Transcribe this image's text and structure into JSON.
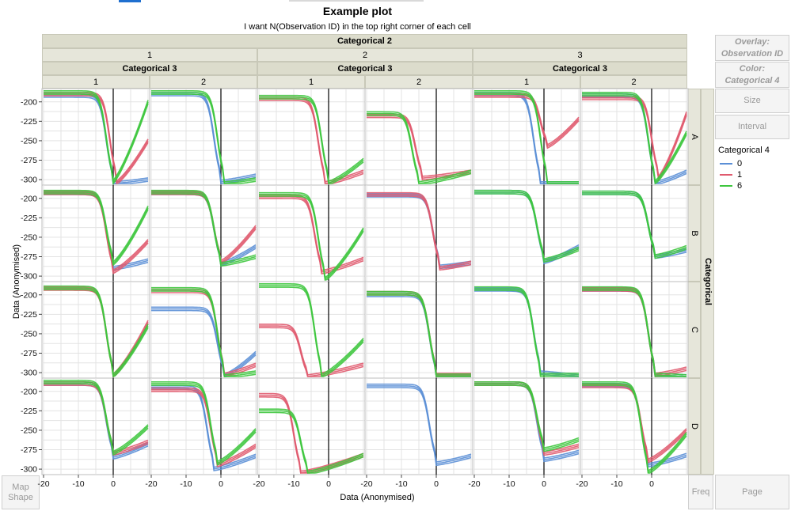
{
  "title": "Example plot",
  "subtitle": "I want N(Observation ID) in the top right corner of each cell",
  "side_panel": {
    "overlay_label": "Overlay:",
    "overlay_value": "Observation ID",
    "color_label": "Color:",
    "color_value": "Categorical 4",
    "size_button": "Size",
    "interval_button": "Interval",
    "freq_button": "Freq",
    "page_button": "Page",
    "map_shape_line1": "Map",
    "map_shape_line2": "Shape"
  },
  "legend": {
    "title": "Categorical 4",
    "items": [
      {
        "label": "0",
        "color": "#5b8fd6"
      },
      {
        "label": "1",
        "color": "#e05a6e"
      },
      {
        "label": "6",
        "color": "#3ec63e"
      }
    ]
  },
  "chart_data": {
    "type": "line",
    "xlabel": "Data (Anonymised)",
    "ylabel": "Data (Anonymised)",
    "xlim": [
      -20,
      10
    ],
    "ylim": [
      -305,
      -185
    ],
    "xticks": [
      -20,
      -10,
      0
    ],
    "yticks": [
      -200,
      -225,
      -250,
      -275,
      -300
    ],
    "grid": true,
    "reference_line_x": 0,
    "legend_placement": "right",
    "group_x_title": "Categorical 2",
    "group_x_sub_title": "Categorical 3",
    "group_y_title": "Categorical",
    "cat2_levels": [
      "1",
      "2",
      "3"
    ],
    "cat3_levels": [
      "1",
      "2"
    ],
    "row_levels": [
      "A",
      "B",
      "C",
      "D"
    ],
    "series_note": "Each panel overlays curves per Observation ID colored by Categorical 4",
    "panels": [
      {
        "row": "A",
        "cat2": "1",
        "cat3": "1",
        "curves": [
          {
            "color": "0",
            "start": -192,
            "end": -305,
            "mid": -2,
            "rebound": -300
          },
          {
            "color": "1",
            "start": -190,
            "end": -305,
            "mid": -1,
            "rebound": -250
          },
          {
            "color": "6",
            "start": -188,
            "end": -305,
            "mid": -2,
            "rebound": -200
          }
        ]
      },
      {
        "row": "A",
        "cat2": "1",
        "cat3": "2",
        "curves": [
          {
            "color": "0",
            "start": -190,
            "end": -303,
            "mid": -2,
            "rebound": -295
          },
          {
            "color": "6",
            "start": -188,
            "end": -305,
            "mid": -1,
            "rebound": -300
          }
        ]
      },
      {
        "row": "A",
        "cat2": "2",
        "cat3": "1",
        "curves": [
          {
            "color": "1",
            "start": -196,
            "end": -305,
            "mid": -3,
            "rebound": -290
          },
          {
            "color": "6",
            "start": -194,
            "end": -305,
            "mid": -2,
            "rebound": -275
          }
        ]
      },
      {
        "row": "A",
        "cat2": "2",
        "cat3": "2",
        "curves": [
          {
            "color": "1",
            "start": -218,
            "end": -298,
            "mid": -6,
            "rebound": -290
          },
          {
            "color": "6",
            "start": -215,
            "end": -305,
            "mid": -7,
            "rebound": -290
          }
        ]
      },
      {
        "row": "A",
        "cat2": "3",
        "cat3": "1",
        "curves": [
          {
            "color": "0",
            "start": -190,
            "end": -305,
            "mid": -3,
            "rebound": -305
          },
          {
            "color": "1",
            "start": -192,
            "end": -258,
            "mid": -1,
            "rebound": -222
          },
          {
            "color": "6",
            "start": -188,
            "end": -305,
            "mid": -1,
            "rebound": -305
          }
        ]
      },
      {
        "row": "A",
        "cat2": "3",
        "cat3": "2",
        "curves": [
          {
            "color": "0",
            "start": -192,
            "end": -305,
            "mid": -1,
            "rebound": -290
          },
          {
            "color": "1",
            "start": -195,
            "end": -300,
            "mid": 0,
            "rebound": -215
          },
          {
            "color": "6",
            "start": -190,
            "end": -305,
            "mid": -1,
            "rebound": -240
          }
        ]
      },
      {
        "row": "B",
        "cat2": "1",
        "cat3": "1",
        "curves": [
          {
            "color": "0",
            "start": -193,
            "end": -290,
            "mid": -2,
            "rebound": -280
          },
          {
            "color": "1",
            "start": -193,
            "end": -295,
            "mid": -2,
            "rebound": -255
          },
          {
            "color": "6",
            "start": -192,
            "end": -285,
            "mid": -2,
            "rebound": -212
          }
        ]
      },
      {
        "row": "B",
        "cat2": "1",
        "cat3": "2",
        "curves": [
          {
            "color": "0",
            "start": -193,
            "end": -285,
            "mid": -2,
            "rebound": -262
          },
          {
            "color": "1",
            "start": -193,
            "end": -283,
            "mid": -2,
            "rebound": -237
          },
          {
            "color": "6",
            "start": -192,
            "end": -285,
            "mid": -2,
            "rebound": -275
          }
        ]
      },
      {
        "row": "B",
        "cat2": "2",
        "cat3": "1",
        "curves": [
          {
            "color": "1",
            "start": -198,
            "end": -295,
            "mid": -4,
            "rebound": -278
          },
          {
            "color": "6",
            "start": -195,
            "end": -305,
            "mid": -3,
            "rebound": -240
          }
        ]
      },
      {
        "row": "B",
        "cat2": "2",
        "cat3": "2",
        "curves": [
          {
            "color": "0",
            "start": -196,
            "end": -288,
            "mid": -1,
            "rebound": -283
          },
          {
            "color": "1",
            "start": -195,
            "end": -290,
            "mid": -1,
            "rebound": -283
          }
        ]
      },
      {
        "row": "B",
        "cat2": "3",
        "cat3": "1",
        "curves": [
          {
            "color": "0",
            "start": -192,
            "end": -282,
            "mid": -2,
            "rebound": -262
          },
          {
            "color": "6",
            "start": -192,
            "end": -280,
            "mid": -2,
            "rebound": -265
          }
        ]
      },
      {
        "row": "B",
        "cat2": "3",
        "cat3": "2",
        "curves": [
          {
            "color": "0",
            "start": -193,
            "end": -275,
            "mid": -1,
            "rebound": -267
          },
          {
            "color": "6",
            "start": -193,
            "end": -275,
            "mid": -1,
            "rebound": -263
          }
        ]
      },
      {
        "row": "C",
        "cat2": "1",
        "cat3": "1",
        "curves": [
          {
            "color": "1",
            "start": -192,
            "end": -305,
            "mid": -2,
            "rebound": -235
          },
          {
            "color": "6",
            "start": -191,
            "end": -305,
            "mid": -2,
            "rebound": -240
          }
        ]
      },
      {
        "row": "C",
        "cat2": "1",
        "cat3": "2",
        "curves": [
          {
            "color": "0",
            "start": -218,
            "end": -305,
            "mid": -1,
            "rebound": -275
          },
          {
            "color": "1",
            "start": -195,
            "end": -303,
            "mid": -1,
            "rebound": -290
          },
          {
            "color": "6",
            "start": -193,
            "end": -305,
            "mid": -1,
            "rebound": -300
          }
        ]
      },
      {
        "row": "C",
        "cat2": "2",
        "cat3": "1",
        "curves": [
          {
            "color": "1",
            "start": -240,
            "end": -305,
            "mid": -8,
            "rebound": -290
          },
          {
            "color": "6",
            "start": -188,
            "end": -305,
            "mid": -4,
            "rebound": -258
          }
        ]
      },
      {
        "row": "C",
        "cat2": "2",
        "cat3": "2",
        "curves": [
          {
            "color": "0",
            "start": -200,
            "end": -305,
            "mid": -2,
            "rebound": -305
          },
          {
            "color": "1",
            "start": -198,
            "end": -303,
            "mid": -2,
            "rebound": -303
          },
          {
            "color": "6",
            "start": -198,
            "end": -304,
            "mid": -2,
            "rebound": -304
          }
        ]
      },
      {
        "row": "C",
        "cat2": "3",
        "cat3": "1",
        "curves": [
          {
            "color": "0",
            "start": -193,
            "end": -300,
            "mid": -3,
            "rebound": -305
          },
          {
            "color": "6",
            "start": -192,
            "end": -303,
            "mid": -3,
            "rebound": -303
          }
        ]
      },
      {
        "row": "C",
        "cat2": "3",
        "cat3": "2",
        "curves": [
          {
            "color": "0",
            "start": -193,
            "end": -303,
            "mid": -1,
            "rebound": -305
          },
          {
            "color": "1",
            "start": -193,
            "end": -303,
            "mid": -1,
            "rebound": -295
          },
          {
            "color": "6",
            "start": -192,
            "end": -303,
            "mid": -1,
            "rebound": -305
          }
        ]
      },
      {
        "row": "D",
        "cat2": "1",
        "cat3": "1",
        "curves": [
          {
            "color": "0",
            "start": -190,
            "end": -285,
            "mid": -2,
            "rebound": -268
          },
          {
            "color": "1",
            "start": -190,
            "end": -280,
            "mid": -2,
            "rebound": -265
          },
          {
            "color": "6",
            "start": -188,
            "end": -280,
            "mid": -2,
            "rebound": -245
          }
        ]
      },
      {
        "row": "D",
        "cat2": "1",
        "cat3": "2",
        "curves": [
          {
            "color": "0",
            "start": -195,
            "end": -300,
            "mid": -4,
            "rebound": -283
          },
          {
            "color": "1",
            "start": -198,
            "end": -295,
            "mid": -3,
            "rebound": -270
          },
          {
            "color": "6",
            "start": -190,
            "end": -293,
            "mid": -3,
            "rebound": -250
          }
        ]
      },
      {
        "row": "D",
        "cat2": "2",
        "cat3": "1",
        "curves": [
          {
            "color": "1",
            "start": -205,
            "end": -305,
            "mid": -10,
            "rebound": -282
          },
          {
            "color": "6",
            "start": -225,
            "end": -305,
            "mid": -8,
            "rebound": -282
          }
        ]
      },
      {
        "row": "D",
        "cat2": "2",
        "cat3": "2",
        "curves": [
          {
            "color": "0",
            "start": -193,
            "end": -293,
            "mid": -2,
            "rebound": -283
          }
        ]
      },
      {
        "row": "D",
        "cat2": "3",
        "cat3": "1",
        "curves": [
          {
            "color": "0",
            "start": -190,
            "end": -288,
            "mid": -2,
            "rebound": -278
          },
          {
            "color": "1",
            "start": -190,
            "end": -280,
            "mid": -2,
            "rebound": -270
          },
          {
            "color": "6",
            "start": -190,
            "end": -275,
            "mid": -2,
            "rebound": -262
          }
        ]
      },
      {
        "row": "D",
        "cat2": "3",
        "cat3": "2",
        "curves": [
          {
            "color": "0",
            "start": -192,
            "end": -295,
            "mid": -3,
            "rebound": -282
          },
          {
            "color": "1",
            "start": -193,
            "end": -290,
            "mid": -3,
            "rebound": -250
          },
          {
            "color": "6",
            "start": -190,
            "end": -305,
            "mid": -3,
            "rebound": -255
          }
        ]
      }
    ]
  }
}
